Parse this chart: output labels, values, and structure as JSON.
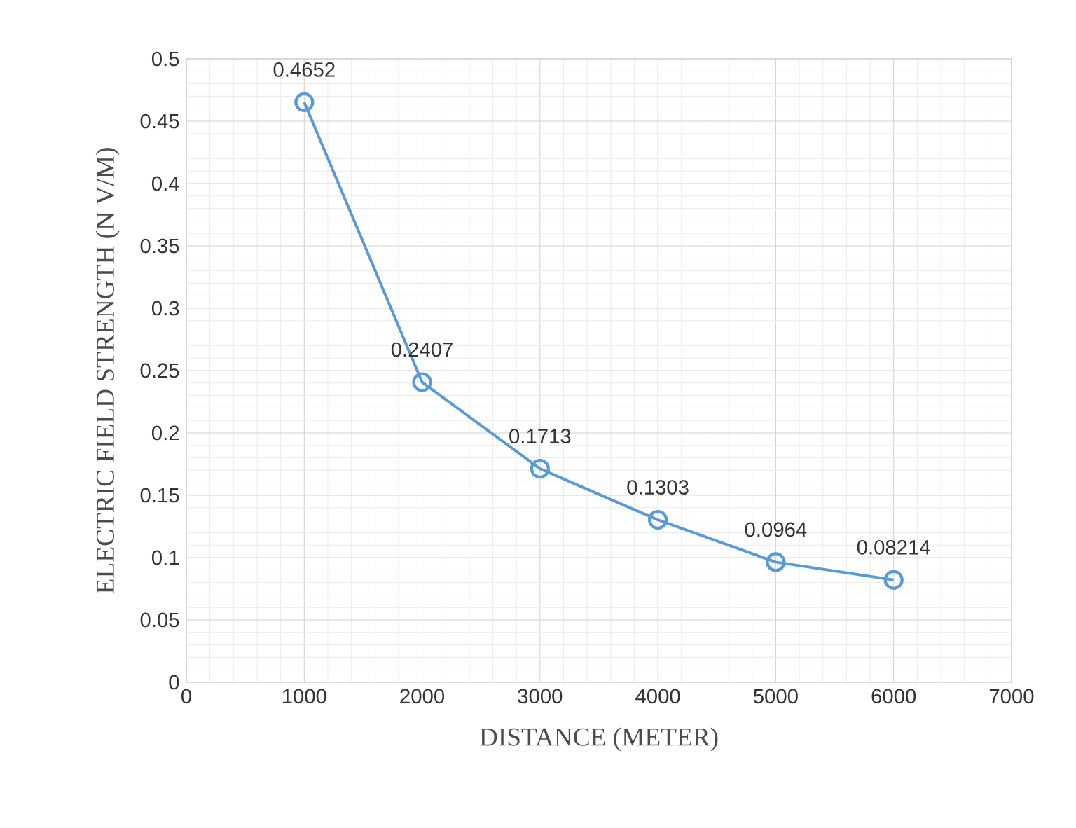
{
  "chart_data": {
    "type": "line",
    "xlabel": "DISTANCE (METER)",
    "ylabel": "ELECTRIC FIELD STRENGTH (N V/M)",
    "x": [
      1000,
      2000,
      3000,
      4000,
      5000,
      6000
    ],
    "series": [
      {
        "color": "#5b9bd5",
        "values": [
          0.4652,
          0.2407,
          0.1713,
          0.1303,
          0.0964,
          0.08214
        ]
      }
    ],
    "xlim": [
      0,
      7000
    ],
    "xticks": [
      0,
      1000,
      2000,
      3000,
      4000,
      5000,
      6000,
      7000
    ],
    "ylim": [
      0,
      0.5
    ],
    "yticks": [
      0,
      0.05,
      0.1,
      0.15,
      0.2,
      0.25,
      0.3,
      0.35,
      0.4,
      0.45,
      0.5
    ],
    "grid": true,
    "marker": "circle",
    "line_style": "solid",
    "data_labels": true
  }
}
